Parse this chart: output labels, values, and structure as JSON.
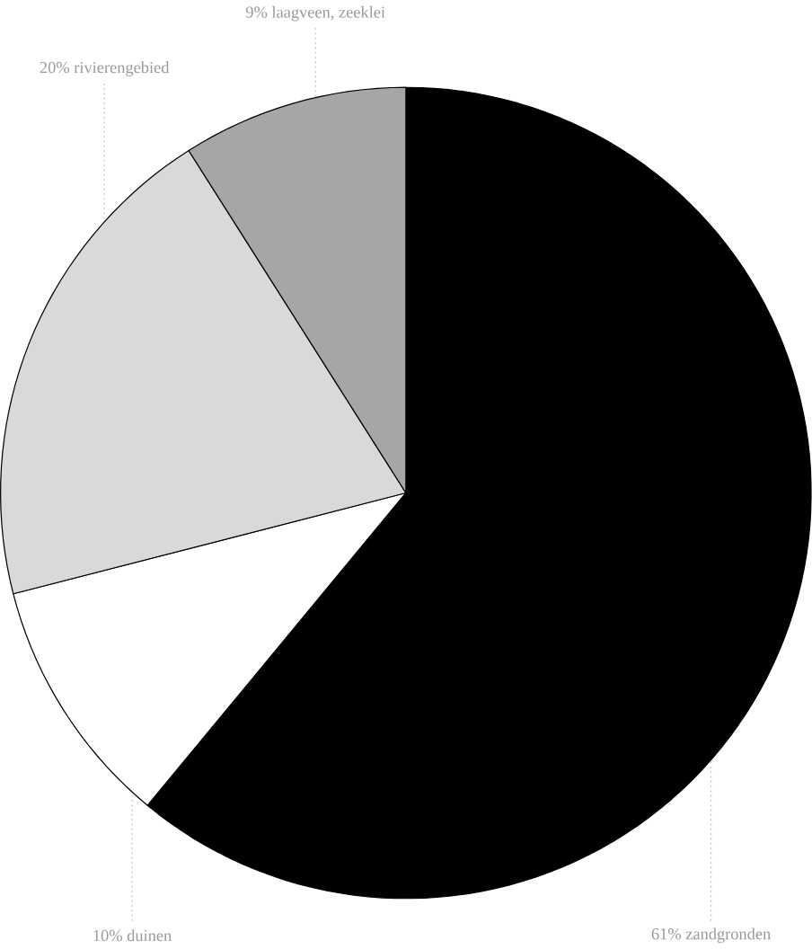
{
  "chart_data": {
    "type": "pie",
    "categories": [
      "61% zandgronden",
      "10% duinen",
      "20% rivierengebied",
      "9% laagveen, zeeklei"
    ],
    "values": [
      61,
      10,
      20,
      9
    ],
    "colors": [
      "#000000",
      "#ffffff",
      "#d9d9d9",
      "#a6a6a6"
    ]
  }
}
